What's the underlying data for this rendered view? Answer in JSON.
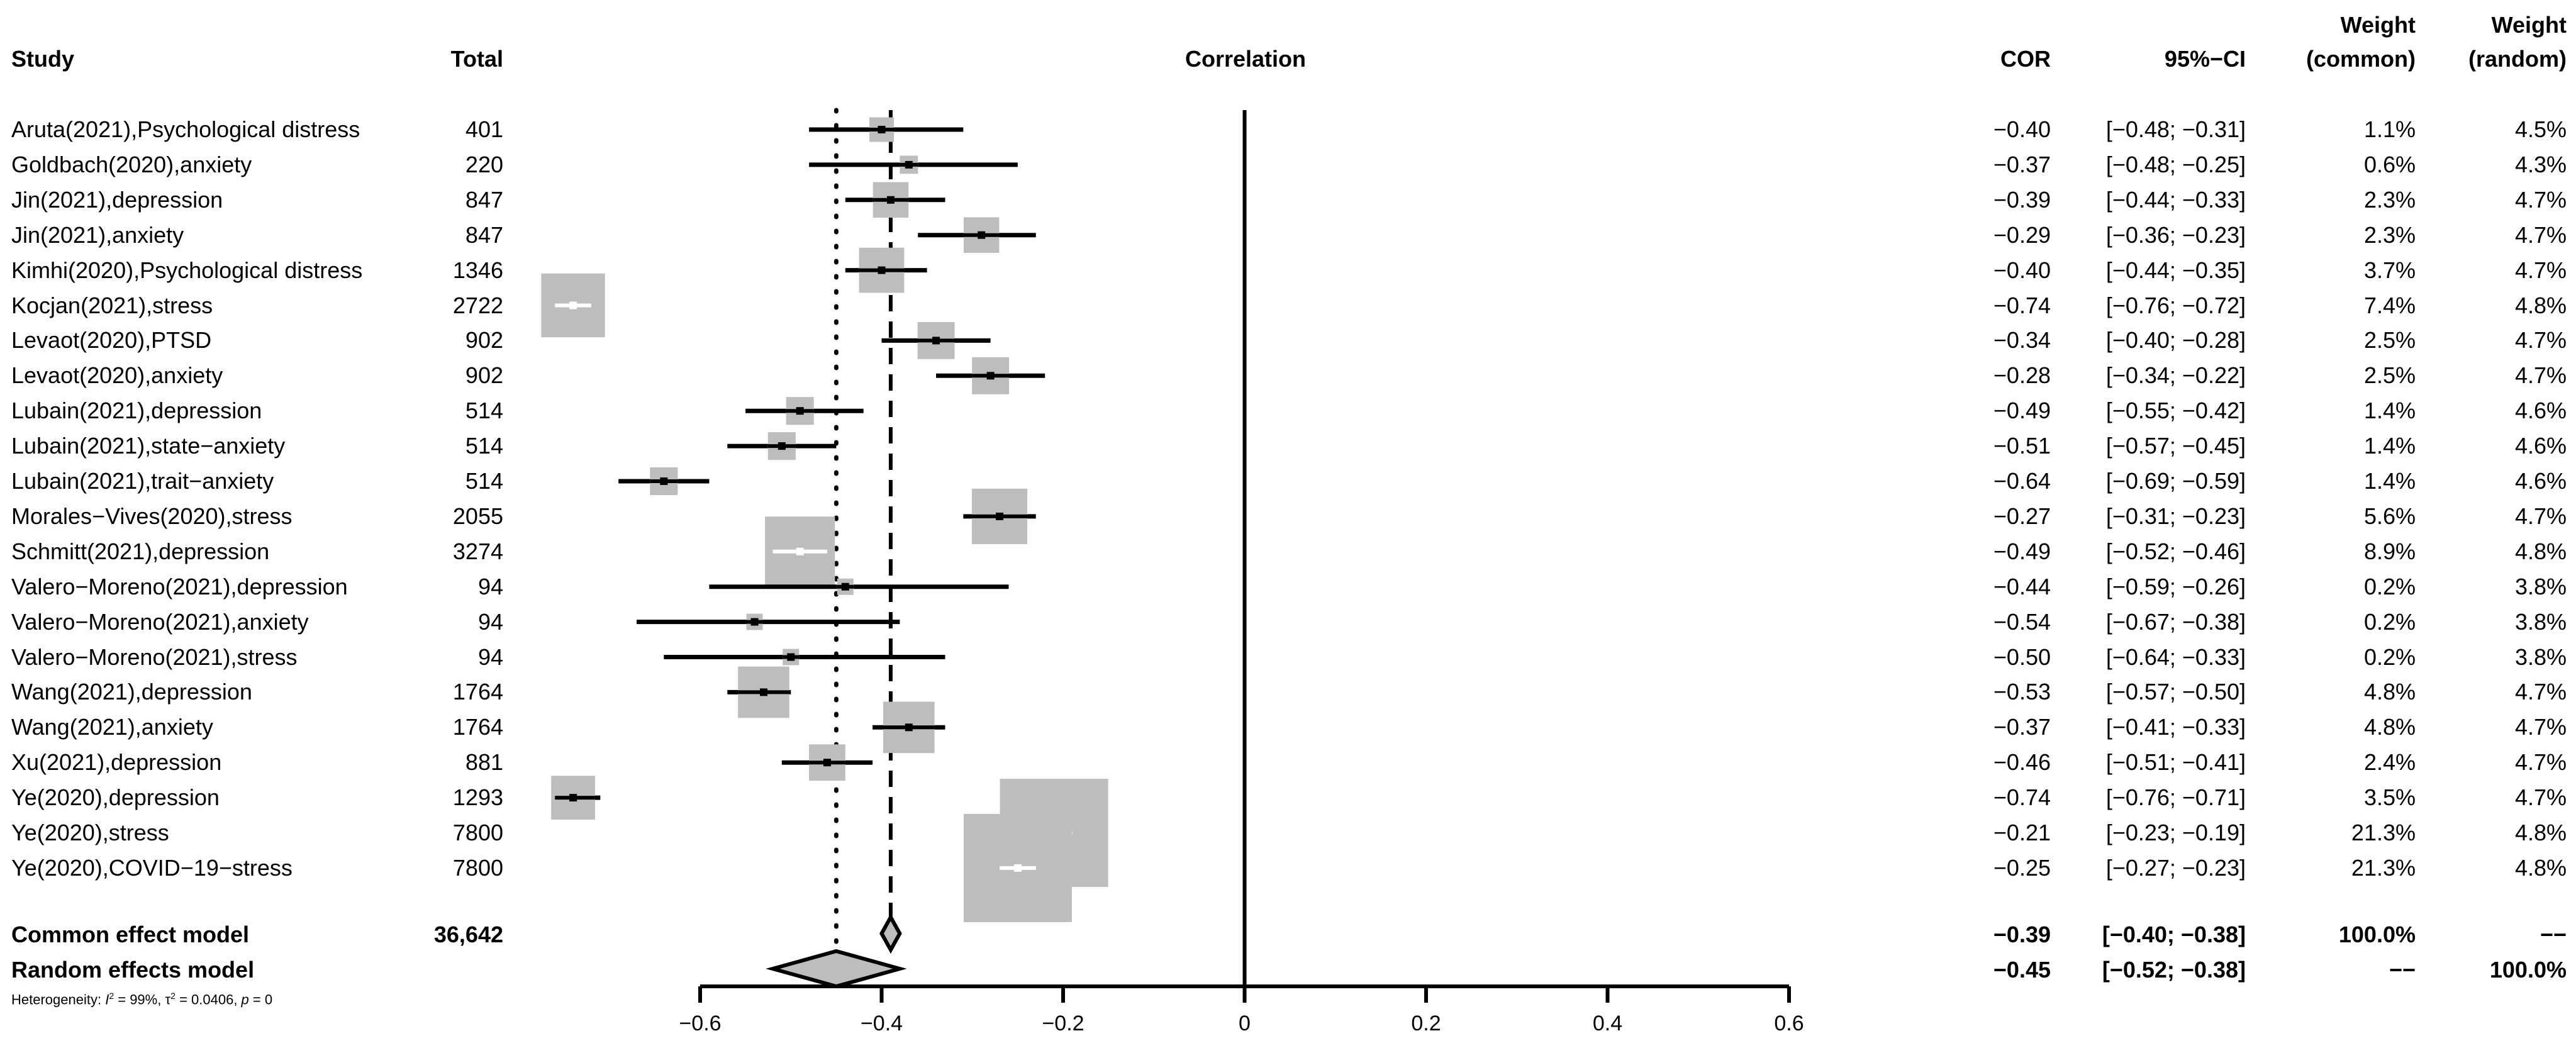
{
  "headers": {
    "study": "Study",
    "total": "Total",
    "plot": "Correlation",
    "cor": "COR",
    "ci": "95%−CI",
    "wc_line1": "Weight",
    "wc_line2": "(common)",
    "wr_line1": "Weight",
    "wr_line2": "(random)"
  },
  "studies": [
    {
      "study": "Aruta(2021),Psychological distress",
      "total": "401",
      "cor_text": "−0.40",
      "ci_text": "[−0.48; −0.31]",
      "w_common": "1.1%",
      "w_random": "4.5%"
    },
    {
      "study": "Goldbach(2020),anxiety",
      "total": "220",
      "cor_text": "−0.37",
      "ci_text": "[−0.48; −0.25]",
      "w_common": "0.6%",
      "w_random": "4.3%"
    },
    {
      "study": "Jin(2021),depression",
      "total": "847",
      "cor_text": "−0.39",
      "ci_text": "[−0.44; −0.33]",
      "w_common": "2.3%",
      "w_random": "4.7%"
    },
    {
      "study": "Jin(2021),anxiety",
      "total": "847",
      "cor_text": "−0.29",
      "ci_text": "[−0.36; −0.23]",
      "w_common": "2.3%",
      "w_random": "4.7%"
    },
    {
      "study": "Kimhi(2020),Psychological distress",
      "total": "1346",
      "cor_text": "−0.40",
      "ci_text": "[−0.44; −0.35]",
      "w_common": "3.7%",
      "w_random": "4.7%"
    },
    {
      "study": "Kocjan(2021),stress",
      "total": "2722",
      "cor_text": "−0.74",
      "ci_text": "[−0.76; −0.72]",
      "w_common": "7.4%",
      "w_random": "4.8%"
    },
    {
      "study": "Levaot(2020),PTSD",
      "total": "902",
      "cor_text": "−0.34",
      "ci_text": "[−0.40; −0.28]",
      "w_common": "2.5%",
      "w_random": "4.7%"
    },
    {
      "study": "Levaot(2020),anxiety",
      "total": "902",
      "cor_text": "−0.28",
      "ci_text": "[−0.34; −0.22]",
      "w_common": "2.5%",
      "w_random": "4.7%"
    },
    {
      "study": "Lubain(2021),depression",
      "total": "514",
      "cor_text": "−0.49",
      "ci_text": "[−0.55; −0.42]",
      "w_common": "1.4%",
      "w_random": "4.6%"
    },
    {
      "study": "Lubain(2021),state−anxiety",
      "total": "514",
      "cor_text": "−0.51",
      "ci_text": "[−0.57; −0.45]",
      "w_common": "1.4%",
      "w_random": "4.6%"
    },
    {
      "study": "Lubain(2021),trait−anxiety",
      "total": "514",
      "cor_text": "−0.64",
      "ci_text": "[−0.69; −0.59]",
      "w_common": "1.4%",
      "w_random": "4.6%"
    },
    {
      "study": "Morales−Vives(2020),stress",
      "total": "2055",
      "cor_text": "−0.27",
      "ci_text": "[−0.31; −0.23]",
      "w_common": "5.6%",
      "w_random": "4.7%"
    },
    {
      "study": "Schmitt(2021),depression",
      "total": "3274",
      "cor_text": "−0.49",
      "ci_text": "[−0.52; −0.46]",
      "w_common": "8.9%",
      "w_random": "4.8%"
    },
    {
      "study": "Valero−Moreno(2021),depression",
      "total": "94",
      "cor_text": "−0.44",
      "ci_text": "[−0.59; −0.26]",
      "w_common": "0.2%",
      "w_random": "3.8%"
    },
    {
      "study": "Valero−Moreno(2021),anxiety",
      "total": "94",
      "cor_text": "−0.54",
      "ci_text": "[−0.67; −0.38]",
      "w_common": "0.2%",
      "w_random": "3.8%"
    },
    {
      "study": "Valero−Moreno(2021),stress",
      "total": "94",
      "cor_text": "−0.50",
      "ci_text": "[−0.64; −0.33]",
      "w_common": "0.2%",
      "w_random": "3.8%"
    },
    {
      "study": "Wang(2021),depression",
      "total": "1764",
      "cor_text": "−0.53",
      "ci_text": "[−0.57; −0.50]",
      "w_common": "4.8%",
      "w_random": "4.7%"
    },
    {
      "study": "Wang(2021),anxiety",
      "total": "1764",
      "cor_text": "−0.37",
      "ci_text": "[−0.41; −0.33]",
      "w_common": "4.8%",
      "w_random": "4.7%"
    },
    {
      "study": "Xu(2021),depression",
      "total": "881",
      "cor_text": "−0.46",
      "ci_text": "[−0.51; −0.41]",
      "w_common": "2.4%",
      "w_random": "4.7%"
    },
    {
      "study": "Ye(2020),depression",
      "total": "1293",
      "cor_text": "−0.74",
      "ci_text": "[−0.76; −0.71]",
      "w_common": "3.5%",
      "w_random": "4.7%"
    },
    {
      "study": "Ye(2020),stress",
      "total": "7800",
      "cor_text": "−0.21",
      "ci_text": "[−0.23; −0.19]",
      "w_common": "21.3%",
      "w_random": "4.8%"
    },
    {
      "study": "Ye(2020),COVID−19−stress",
      "total": "7800",
      "cor_text": "−0.25",
      "ci_text": "[−0.27; −0.23]",
      "w_common": "21.3%",
      "w_random": "4.8%"
    }
  ],
  "summary": {
    "common": {
      "label": "Common effect model",
      "total": "36,642",
      "cor_text": "−0.39",
      "ci_text": "[−0.40; −0.38]",
      "w_common": "100.0%",
      "w_random": "−−"
    },
    "random": {
      "label": "Random effects model",
      "cor_text": "−0.45",
      "ci_text": "[−0.52; −0.38]",
      "w_common": "−−",
      "w_random": "100.0%"
    },
    "heterogeneity_prefix": "Heterogeneity: ",
    "i2_sym": "I",
    "i2_sup": "2",
    "i2_val": " = 99%, τ",
    "tau_sup": "2",
    "tau_val": " = 0.0406, ",
    "p_sym": "p",
    "p_val": " = 0"
  },
  "chart_data": {
    "type": "forest",
    "xlabel": "",
    "title": "Correlation",
    "xlim": [
      -0.6,
      0.6
    ],
    "ticks": [
      -0.6,
      -0.4,
      -0.2,
      0,
      0.2,
      0.4,
      0.6
    ],
    "tick_labels": [
      "−0.6",
      "−0.4",
      "−0.2",
      "0",
      "0.2",
      "0.4",
      "0.6"
    ],
    "null_line": 0,
    "common_effect": {
      "est": -0.39,
      "lo": -0.4,
      "hi": -0.38
    },
    "random_effect": {
      "est": -0.45,
      "lo": -0.52,
      "hi": -0.38
    },
    "studies": [
      {
        "est": -0.4,
        "lo": -0.48,
        "hi": -0.31,
        "w_common": 1.1
      },
      {
        "est": -0.37,
        "lo": -0.48,
        "hi": -0.25,
        "w_common": 0.6
      },
      {
        "est": -0.39,
        "lo": -0.44,
        "hi": -0.33,
        "w_common": 2.3
      },
      {
        "est": -0.29,
        "lo": -0.36,
        "hi": -0.23,
        "w_common": 2.3
      },
      {
        "est": -0.4,
        "lo": -0.44,
        "hi": -0.35,
        "w_common": 3.7
      },
      {
        "est": -0.74,
        "lo": -0.76,
        "hi": -0.72,
        "w_common": 7.4
      },
      {
        "est": -0.34,
        "lo": -0.4,
        "hi": -0.28,
        "w_common": 2.5
      },
      {
        "est": -0.28,
        "lo": -0.34,
        "hi": -0.22,
        "w_common": 2.5
      },
      {
        "est": -0.49,
        "lo": -0.55,
        "hi": -0.42,
        "w_common": 1.4
      },
      {
        "est": -0.51,
        "lo": -0.57,
        "hi": -0.45,
        "w_common": 1.4
      },
      {
        "est": -0.64,
        "lo": -0.69,
        "hi": -0.59,
        "w_common": 1.4
      },
      {
        "est": -0.27,
        "lo": -0.31,
        "hi": -0.23,
        "w_common": 5.6
      },
      {
        "est": -0.49,
        "lo": -0.52,
        "hi": -0.46,
        "w_common": 8.9
      },
      {
        "est": -0.44,
        "lo": -0.59,
        "hi": -0.26,
        "w_common": 0.2
      },
      {
        "est": -0.54,
        "lo": -0.67,
        "hi": -0.38,
        "w_common": 0.2
      },
      {
        "est": -0.5,
        "lo": -0.64,
        "hi": -0.33,
        "w_common": 0.2
      },
      {
        "est": -0.53,
        "lo": -0.57,
        "hi": -0.5,
        "w_common": 4.8
      },
      {
        "est": -0.37,
        "lo": -0.41,
        "hi": -0.33,
        "w_common": 4.8
      },
      {
        "est": -0.46,
        "lo": -0.51,
        "hi": -0.41,
        "w_common": 2.4
      },
      {
        "est": -0.74,
        "lo": -0.76,
        "hi": -0.71,
        "w_common": 3.5
      },
      {
        "est": -0.21,
        "lo": -0.23,
        "hi": -0.19,
        "w_common": 21.3
      },
      {
        "est": -0.25,
        "lo": -0.27,
        "hi": -0.23,
        "w_common": 21.3
      }
    ],
    "colors": {
      "box": "#bdbdbd",
      "ci_line": "#000000",
      "diamond_fill": "#bdbdbd",
      "inside_ci": "#ffffff"
    }
  }
}
